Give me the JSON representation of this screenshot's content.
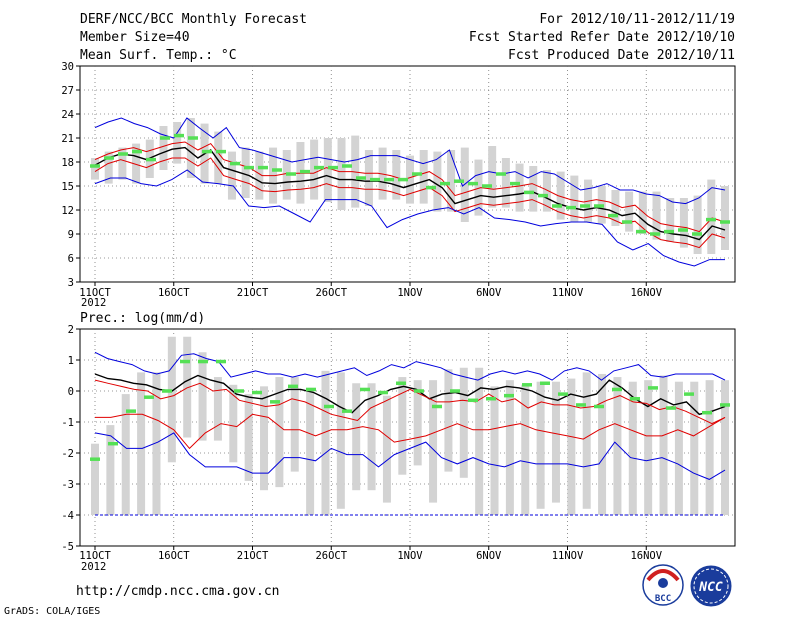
{
  "header": {
    "title": "DERF/NCC/BCC Monthly Forecast",
    "member_size": "Member Size=40",
    "variable1": "Mean Surf. Temp.: °C",
    "period": "For 2012/10/11-2012/11/19",
    "started": "Fcst Started Refer Date 2012/10/10",
    "produced": "Fcst Produced Date 2012/10/11",
    "year_label": "2012"
  },
  "footer": {
    "url": "http://cmdp.ncc.cma.gov.cn",
    "credit": "GrADS: COLA/IGES",
    "logo_bcc": "BCC",
    "logo_ncc": "NCC"
  },
  "colors": {
    "box": "#d3d3d3",
    "median": "#55e055",
    "mean": "#000000",
    "sd": "#e00000",
    "minmax": "#0000dd",
    "grid": "#777777"
  },
  "chart_data": [
    {
      "type": "line",
      "title": "Mean Surf. Temp.: °C",
      "ylim": [
        3,
        30
      ],
      "yticks": [
        3,
        6,
        9,
        12,
        15,
        18,
        21,
        24,
        27,
        30
      ],
      "xticks": [
        "11OCT",
        "16OCT",
        "21OCT",
        "26OCT",
        "1NOV",
        "6NOV",
        "11NOV",
        "16NOV"
      ],
      "x_days": 40,
      "series": [
        {
          "name": "max",
          "values": [
            22.3,
            23.0,
            23.5,
            22.8,
            22.3,
            21.5,
            21.0,
            23.5,
            22.2,
            21.0,
            22.3,
            19.8,
            19.5,
            19.0,
            18.5,
            18.0,
            18.3,
            18.6,
            18.3,
            18.0,
            18.3,
            18.8,
            18.8,
            18.8,
            18.3,
            17.8,
            18.3,
            19.5,
            15.0,
            16.3,
            16.8,
            16.5,
            16.8,
            16.0,
            16.8,
            16.5,
            15.5,
            14.5,
            14.8,
            15.3,
            14.5,
            14.5,
            14.0,
            13.8,
            13.0,
            12.8,
            13.5,
            14.8,
            14.5
          ]
        },
        {
          "name": "sd_upper",
          "values": [
            18.3,
            19.0,
            19.5,
            19.8,
            19.3,
            19.8,
            20.3,
            20.5,
            19.5,
            20.3,
            18.3,
            17.8,
            17.3,
            16.3,
            16.3,
            16.6,
            16.6,
            16.6,
            17.3,
            16.8,
            16.8,
            16.6,
            16.6,
            16.3,
            15.8,
            16.3,
            16.8,
            15.8,
            13.8,
            14.3,
            14.8,
            14.6,
            14.8,
            15.0,
            15.3,
            14.6,
            13.8,
            13.3,
            13.0,
            13.3,
            13.0,
            12.3,
            12.6,
            11.2,
            10.3,
            10.0,
            9.8,
            9.3,
            11.0,
            10.5
          ]
        },
        {
          "name": "mean",
          "values": [
            17.6,
            18.5,
            19.0,
            18.8,
            18.3,
            19.0,
            19.6,
            19.8,
            18.5,
            19.5,
            17.3,
            16.8,
            16.3,
            15.4,
            15.3,
            15.5,
            15.6,
            15.8,
            16.3,
            15.8,
            15.8,
            15.6,
            15.6,
            15.3,
            14.8,
            15.3,
            15.8,
            14.8,
            12.8,
            13.3,
            13.8,
            13.6,
            13.8,
            14.0,
            14.3,
            13.6,
            12.8,
            12.3,
            12.0,
            12.3,
            12.0,
            11.3,
            11.6,
            10.2,
            9.3,
            9.0,
            8.8,
            8.3,
            10.0,
            9.5
          ]
        },
        {
          "name": "sd_lower",
          "values": [
            16.8,
            17.8,
            18.3,
            17.8,
            17.3,
            18.0,
            18.5,
            18.5,
            17.5,
            18.5,
            16.3,
            15.8,
            15.3,
            14.4,
            14.3,
            14.5,
            14.6,
            14.8,
            15.3,
            14.8,
            14.8,
            14.6,
            14.6,
            14.3,
            13.8,
            14.3,
            14.8,
            13.8,
            11.8,
            12.3,
            12.8,
            12.6,
            12.8,
            13.0,
            13.3,
            12.6,
            11.8,
            11.3,
            11.0,
            11.3,
            11.0,
            10.3,
            10.6,
            9.2,
            8.3,
            8.0,
            7.8,
            7.3,
            9.0,
            8.5
          ]
        },
        {
          "name": "min",
          "values": [
            15.3,
            16.0,
            16.0,
            15.3,
            15.0,
            15.8,
            17.0,
            15.5,
            15.3,
            15.0,
            12.5,
            12.3,
            12.5,
            11.5,
            10.5,
            13.3,
            13.3,
            13.3,
            12.5,
            9.8,
            10.8,
            11.5,
            12.0,
            12.3,
            11.5,
            12.3,
            11.0,
            10.8,
            10.5,
            10.0,
            10.3,
            10.5,
            10.5,
            10.2,
            8.0,
            7.0,
            7.8,
            6.3,
            5.5,
            5.0,
            5.8,
            5.8
          ]
        },
        {
          "name": "median",
          "values": [
            17.5,
            18.5,
            19.0,
            19.3,
            18.3,
            21.0,
            21.3,
            21.0,
            19.3,
            19.3,
            17.8,
            17.3,
            17.3,
            17.0,
            16.5,
            16.8,
            17.3,
            17.3,
            17.5,
            16.0,
            15.8,
            15.8,
            15.8,
            16.5,
            14.8,
            15.3,
            15.6,
            15.3,
            15.0,
            16.5,
            15.3,
            14.2,
            13.8,
            12.5,
            12.3,
            12.5,
            12.5,
            11.3,
            10.5,
            9.3,
            9.0,
            9.3,
            9.5,
            9.0,
            10.8,
            10.5
          ]
        }
      ],
      "boxes_low": [
        15.8,
        15.3,
        15.8,
        15.3,
        16.0,
        17.0,
        17.8,
        16.0,
        15.3,
        15.3,
        13.3,
        13.5,
        13.3,
        12.8,
        13.3,
        12.8,
        13.3,
        13.0,
        12.0,
        12.3,
        12.5,
        13.3,
        13.3,
        12.8,
        12.8,
        11.8,
        11.8,
        10.5,
        11.3,
        12.3,
        12.3,
        11.8,
        11.8,
        11.8,
        10.8,
        10.5,
        10.5,
        10.3,
        10.0,
        9.3,
        9.0,
        8.3,
        8.0,
        7.3,
        6.5,
        6.5,
        7.0
      ],
      "boxes_high": [
        18.5,
        19.3,
        19.8,
        20.3,
        20.8,
        22.5,
        23.0,
        23.5,
        22.8,
        21.8,
        19.3,
        19.8,
        19.3,
        19.8,
        19.5,
        20.5,
        20.8,
        21.0,
        21.0,
        21.3,
        19.5,
        19.8,
        19.5,
        18.8,
        19.5,
        19.3,
        19.5,
        19.8,
        18.3,
        20.0,
        18.5,
        17.8,
        17.5,
        17.0,
        16.8,
        16.3,
        15.8,
        15.0,
        14.5,
        14.3,
        14.3,
        14.3,
        13.5,
        13.5,
        13.8,
        15.8,
        15.0
      ]
    },
    {
      "type": "line",
      "title": "Prec.: log(mm/d)",
      "ylim": [
        -5,
        2
      ],
      "yticks": [
        -5,
        -4,
        -3,
        -2,
        -1,
        0,
        1,
        2
      ],
      "xticks": [
        "11OCT",
        "16OCT",
        "21OCT",
        "26OCT",
        "1NOV",
        "6NOV",
        "11NOV",
        "16NOV"
      ],
      "x_days": 40,
      "series": [
        {
          "name": "max",
          "values": [
            1.25,
            1.05,
            0.95,
            0.85,
            0.65,
            0.55,
            0.65,
            1.15,
            1.2,
            1.05,
            0.95,
            0.45,
            0.55,
            0.65,
            0.55,
            0.55,
            0.45,
            0.55,
            0.45,
            0.55,
            0.65,
            0.75,
            0.5,
            0.65,
            0.85,
            0.75,
            0.95,
            0.85,
            0.75,
            0.55,
            0.45,
            0.35,
            0.55,
            0.65,
            0.55,
            0.65,
            0.55,
            0.35,
            0.65,
            0.75,
            0.65,
            0.35,
            0.65,
            0.75,
            0.85,
            0.5,
            0.45,
            0.55,
            0.55,
            0.55,
            0.55,
            0.35
          ]
        },
        {
          "name": "mean",
          "values": [
            0.55,
            0.4,
            0.35,
            0.25,
            0.2,
            0.05,
            0.0,
            0.3,
            0.5,
            0.35,
            0.25,
            -0.1,
            -0.2,
            -0.25,
            -0.1,
            0.05,
            0.05,
            -0.05,
            -0.25,
            -0.5,
            -0.7,
            -0.3,
            -0.15,
            0.05,
            0.15,
            0.05,
            -0.25,
            -0.1,
            -0.05,
            -0.15,
            0.1,
            0.05,
            0.15,
            0.1,
            0.0,
            -0.2,
            -0.3,
            -0.1,
            -0.2,
            -0.1,
            0.35,
            0.1,
            -0.25,
            -0.5,
            -0.25,
            -0.45,
            -0.35,
            -0.75,
            -0.65,
            -0.5
          ]
        },
        {
          "name": "sd_upper",
          "values": [
            0.35,
            0.25,
            0.15,
            0.05,
            0.0,
            -0.25,
            -0.15,
            0.1,
            0.25,
            0.0,
            0.05,
            -0.3,
            -0.4,
            -0.5,
            -0.45,
            -0.25,
            -0.35,
            -0.55,
            -0.75,
            -0.85,
            -0.95,
            -0.55,
            -0.35,
            -0.15,
            0.05,
            -0.15,
            -0.35,
            -0.35,
            -0.3,
            -0.35,
            -0.1,
            -0.35,
            -0.25,
            -0.55,
            -0.35,
            -0.45,
            -0.45,
            -0.55,
            -0.5,
            -0.3,
            -0.15,
            -0.35,
            -0.4,
            -0.6,
            -0.5,
            -0.65,
            -0.85,
            -1.05,
            -0.85
          ]
        },
        {
          "name": "sd_lower",
          "values": [
            -0.85,
            -0.85,
            -0.75,
            -0.75,
            -0.95,
            -1.25,
            -1.85,
            -1.35,
            -1.05,
            -1.15,
            -0.75,
            -0.85,
            -1.25,
            -1.25,
            -1.45,
            -1.25,
            -1.25,
            -1.15,
            -1.25,
            -1.65,
            -1.55,
            -1.45,
            -1.25,
            -1.05,
            -1.25,
            -1.25,
            -1.15,
            -1.05,
            -1.25,
            -1.35,
            -1.45,
            -1.55,
            -1.25,
            -1.05,
            -1.25,
            -1.45,
            -1.45,
            -1.25,
            -1.45,
            -1.15,
            -0.85
          ]
        },
        {
          "name": "min",
          "values": [
            -1.35,
            -1.45,
            -1.85,
            -1.85,
            -1.65,
            -1.35,
            -2.05,
            -2.45,
            -2.45,
            -2.45,
            -2.65,
            -2.65,
            -2.15,
            -2.15,
            -2.25,
            -1.85,
            -2.05,
            -2.05,
            -2.45,
            -2.05,
            -1.85,
            -1.65,
            -2.15,
            -2.35,
            -2.15,
            -2.35,
            -2.45,
            -2.25,
            -2.35,
            -2.35,
            -2.35,
            -2.45,
            -2.35,
            -1.65,
            -2.15,
            -2.25,
            -2.15,
            -2.35,
            -2.65,
            -2.85,
            -2.55
          ]
        },
        {
          "name": "median",
          "values": [
            -2.2,
            -1.7,
            -0.65,
            -0.2,
            0.0,
            0.95,
            0.95,
            0.95,
            0.0,
            -0.05,
            -0.35,
            0.15,
            0.05,
            -0.5,
            -0.65,
            0.05,
            -0.05,
            0.25,
            0.0,
            -0.5,
            0.0,
            -0.3,
            -0.25,
            -0.15,
            0.2,
            0.25,
            -0.1,
            -0.45,
            -0.5,
            0.05,
            -0.25,
            0.1,
            -0.55,
            -0.1,
            -0.7,
            -0.45
          ]
        },
        {
          "name": "floor",
          "values": [
            -4.0
          ]
        }
      ],
      "boxes_low": [
        -4.0,
        -4.0,
        -4.0,
        -4.0,
        -4.0,
        -2.3,
        -1.5,
        -1.6,
        -1.6,
        -2.3,
        -2.9,
        -3.2,
        -3.1,
        -2.6,
        -4.0,
        -4.0,
        -3.8,
        -3.2,
        -3.2,
        -3.6,
        -2.7,
        -2.4,
        -3.6,
        -2.6,
        -2.8,
        -4.0,
        -4.0,
        -4.0,
        -4.0,
        -3.8,
        -3.6,
        -4.0,
        -3.8,
        -4.0,
        -4.0,
        -4.0,
        -4.0,
        -4.0,
        -4.0,
        -4.0,
        -4.0,
        -4.0
      ],
      "boxes_high": [
        -1.7,
        -1.1,
        -0.1,
        0.6,
        0.6,
        1.75,
        1.75,
        1.25,
        0.45,
        0.2,
        -0.1,
        0.15,
        0.45,
        0.45,
        0.1,
        0.65,
        0.6,
        0.25,
        0.25,
        -0.15,
        0.45,
        0.35,
        0.35,
        0.7,
        0.75,
        0.75,
        0.15,
        0.35,
        0.2,
        0.3,
        0.3,
        0.4,
        0.6,
        0.55,
        0.45,
        0.3,
        0.35,
        0.5,
        0.3,
        0.3,
        0.35,
        0.35
      ]
    }
  ]
}
